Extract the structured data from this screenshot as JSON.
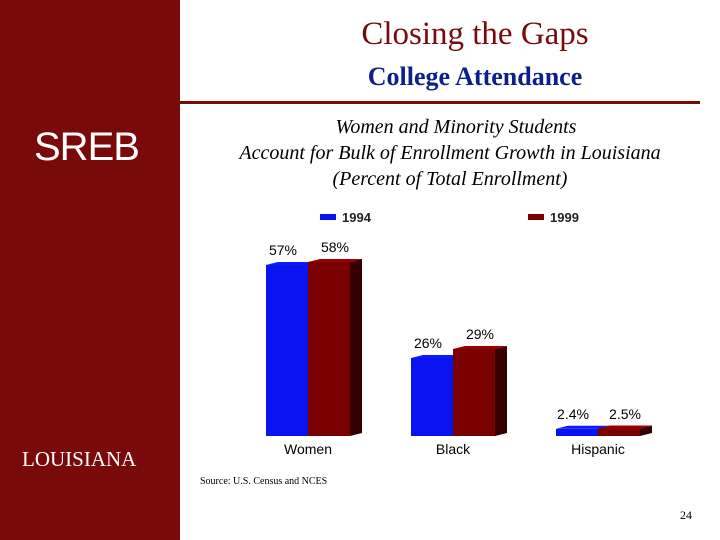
{
  "sidebar": {
    "logo": "SREB",
    "state_label": "LOUISIANA"
  },
  "header": {
    "title": "Closing the Gaps",
    "subtitle": "College Attendance"
  },
  "colors": {
    "sidebar": "#7a0a0a",
    "title": "#7a0a0a",
    "subtitle": "#0d1f8a",
    "series_1994": "#0a14f0",
    "series_1999": "#7a0000"
  },
  "chart_data": {
    "type": "bar",
    "title_lines": [
      "Women and Minority Students",
      "Account for Bulk of Enrollment Growth in Louisiana",
      "(Percent of Total Enrollment)"
    ],
    "categories": [
      "Women",
      "Black",
      "Hispanic"
    ],
    "series": [
      {
        "name": "1994",
        "values": [
          57,
          26,
          2.4
        ],
        "labels": [
          "57%",
          "26%",
          "2.4%"
        ]
      },
      {
        "name": "1999",
        "values": [
          58,
          29,
          2.5
        ],
        "labels": [
          "58%",
          "29%",
          "2.5%"
        ]
      }
    ],
    "ylim": [
      0,
      60
    ],
    "legend": "top",
    "grid": false
  },
  "footer": {
    "source": "Source: U.S. Census and NCES",
    "page_number": "24"
  }
}
